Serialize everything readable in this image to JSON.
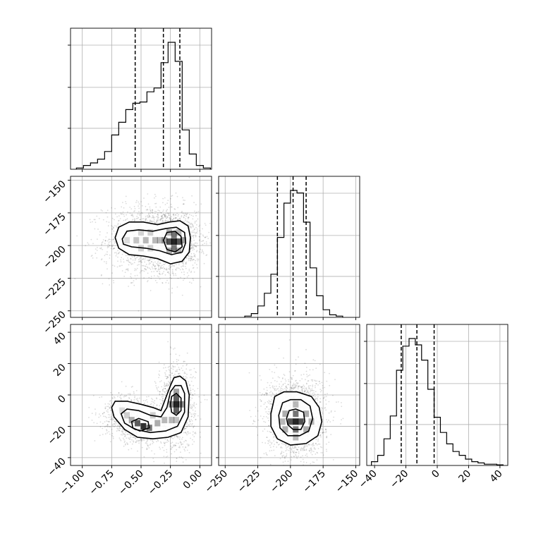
{
  "chart_data": {
    "type": "corner",
    "grid": true,
    "parameters": [
      {
        "range": [
          -1.1,
          0.1
        ],
        "ticks": [
          -1.0,
          -0.75,
          -0.5,
          -0.25,
          0.0
        ],
        "tick_labels": [
          "−1.00",
          "−0.75",
          "−0.50",
          "−0.25",
          "0.00"
        ],
        "quantiles": [
          -0.55,
          -0.31,
          -0.17
        ],
        "hist": {
          "bins": [
            -1.05,
            -0.99,
            -0.93,
            -0.87,
            -0.81,
            -0.75,
            -0.69,
            -0.63,
            -0.57,
            -0.51,
            -0.45,
            -0.39,
            -0.33,
            -0.27,
            -0.21,
            -0.15,
            -0.09,
            -0.03,
            0.03,
            0.09
          ],
          "counts": [
            0.01,
            0.03,
            0.05,
            0.08,
            0.14,
            0.27,
            0.37,
            0.47,
            0.52,
            0.53,
            0.61,
            0.64,
            0.84,
            1.0,
            0.85,
            0.31,
            0.12,
            0.03,
            0.01
          ]
        }
      },
      {
        "range": [
          -255,
          -147
        ],
        "ticks": [
          -250,
          -225,
          -200,
          -175,
          -150
        ],
        "tick_labels": [
          "−250",
          "−225",
          "−200",
          "−175",
          "−150"
        ],
        "quantiles": [
          -210,
          -198,
          -188
        ],
        "hist": {
          "bins": [
            -235,
            -230,
            -225,
            -220,
            -215,
            -210,
            -205,
            -200,
            -195,
            -190,
            -185,
            -180,
            -175,
            -170,
            -165,
            -160
          ],
          "counts": [
            0.01,
            0.03,
            0.09,
            0.19,
            0.34,
            0.63,
            0.9,
            1.0,
            0.98,
            0.75,
            0.39,
            0.17,
            0.06,
            0.02,
            0.01
          ]
        }
      },
      {
        "range": [
          -45,
          45
        ],
        "ticks": [
          -40,
          -20,
          0,
          20,
          40
        ],
        "tick_labels": [
          "−40",
          "−20",
          "0",
          "20",
          "40"
        ],
        "quantiles": [
          -23,
          -13,
          -2
        ],
        "hist": {
          "bins": [
            -42,
            -38,
            -34,
            -30,
            -26,
            -22,
            -18,
            -14,
            -10,
            -6,
            -2,
            2,
            6,
            10,
            14,
            18,
            22,
            26,
            30,
            34,
            38,
            42
          ],
          "counts": [
            0.03,
            0.08,
            0.21,
            0.39,
            0.75,
            0.94,
            1.0,
            0.95,
            0.83,
            0.6,
            0.38,
            0.26,
            0.17,
            0.11,
            0.08,
            0.05,
            0.03,
            0.02,
            0.01,
            0.01,
            0.005
          ]
        }
      }
    ],
    "pairs": [
      {
        "x_param": 0,
        "y_param": 1,
        "contours": [
          [
            [
              -0.72,
              -194
            ],
            [
              -0.69,
              -186
            ],
            [
              -0.6,
              -182
            ],
            [
              -0.48,
              -182
            ],
            [
              -0.36,
              -184
            ],
            [
              -0.26,
              -182
            ],
            [
              -0.17,
              -181
            ],
            [
              -0.1,
              -185
            ],
            [
              -0.08,
              -194
            ],
            [
              -0.09,
              -205
            ],
            [
              -0.15,
              -212
            ],
            [
              -0.25,
              -214
            ],
            [
              -0.36,
              -210
            ],
            [
              -0.48,
              -208
            ],
            [
              -0.6,
              -207
            ],
            [
              -0.69,
              -202
            ],
            [
              -0.72,
              -194
            ]
          ],
          [
            [
              -0.66,
              -195
            ],
            [
              -0.62,
              -189
            ],
            [
              -0.52,
              -188
            ],
            [
              -0.4,
              -189
            ],
            [
              -0.29,
              -187
            ],
            [
              -0.2,
              -186
            ],
            [
              -0.13,
              -190
            ],
            [
              -0.12,
              -198
            ],
            [
              -0.15,
              -205
            ],
            [
              -0.24,
              -207
            ],
            [
              -0.34,
              -204
            ],
            [
              -0.46,
              -202
            ],
            [
              -0.58,
              -201
            ],
            [
              -0.65,
              -199
            ],
            [
              -0.66,
              -195
            ]
          ],
          [
            [
              -0.31,
              -196
            ],
            [
              -0.28,
              -190
            ],
            [
              -0.21,
              -189
            ],
            [
              -0.16,
              -193
            ],
            [
              -0.15,
              -201
            ],
            [
              -0.21,
              -205
            ],
            [
              -0.28,
              -203
            ],
            [
              -0.31,
              -196
            ]
          ]
        ],
        "cells": [
          [
            -0.22,
            -197,
            0.95
          ],
          [
            -0.26,
            -197,
            0.75
          ],
          [
            -0.18,
            -197,
            0.75
          ],
          [
            -0.22,
            -192,
            0.6
          ],
          [
            -0.22,
            -202,
            0.6
          ],
          [
            -0.3,
            -196,
            0.4
          ],
          [
            -0.14,
            -196,
            0.4
          ],
          [
            -0.38,
            -196,
            0.3
          ],
          [
            -0.46,
            -196,
            0.3
          ],
          [
            -0.54,
            -196,
            0.25
          ],
          [
            -0.62,
            -196,
            0.15
          ],
          [
            -0.42,
            -190,
            0.2
          ],
          [
            -0.42,
            -202,
            0.2
          ],
          [
            -0.5,
            -190,
            0.18
          ],
          [
            -0.5,
            -202,
            0.18
          ],
          [
            -0.26,
            -190,
            0.35
          ],
          [
            -0.26,
            -204,
            0.35
          ],
          [
            -0.18,
            -190,
            0.3
          ],
          [
            -0.18,
            -204,
            0.3
          ],
          [
            -0.34,
            -196,
            0.3
          ]
        ]
      },
      {
        "x_param": 0,
        "y_param": 2,
        "contours": [
          [
            [
              -0.75,
              -8
            ],
            [
              -0.72,
              -4
            ],
            [
              -0.62,
              -4
            ],
            [
              -0.5,
              -6
            ],
            [
              -0.4,
              -8
            ],
            [
              -0.33,
              -10
            ],
            [
              -0.29,
              -2
            ],
            [
              -0.25,
              6
            ],
            [
              -0.22,
              11
            ],
            [
              -0.17,
              12
            ],
            [
              -0.12,
              9
            ],
            [
              -0.09,
              0
            ],
            [
              -0.1,
              -14
            ],
            [
              -0.16,
              -24
            ],
            [
              -0.27,
              -27
            ],
            [
              -0.4,
              -28
            ],
            [
              -0.53,
              -27
            ],
            [
              -0.64,
              -22
            ],
            [
              -0.73,
              -14
            ],
            [
              -0.75,
              -8
            ]
          ],
          [
            [
              -0.67,
              -12
            ],
            [
              -0.62,
              -9
            ],
            [
              -0.52,
              -10
            ],
            [
              -0.42,
              -13
            ],
            [
              -0.33,
              -14
            ],
            [
              -0.28,
              -8
            ],
            [
              -0.25,
              2
            ],
            [
              -0.21,
              6
            ],
            [
              -0.16,
              6
            ],
            [
              -0.13,
              1
            ],
            [
              -0.13,
              -11
            ],
            [
              -0.19,
              -20
            ],
            [
              -0.29,
              -23
            ],
            [
              -0.42,
              -24
            ],
            [
              -0.55,
              -22
            ],
            [
              -0.64,
              -18
            ],
            [
              -0.67,
              -12
            ]
          ],
          [
            [
              -0.25,
              -6
            ],
            [
              -0.24,
              -1
            ],
            [
              -0.2,
              1
            ],
            [
              -0.16,
              -2
            ],
            [
              -0.16,
              -10
            ],
            [
              -0.2,
              -13
            ],
            [
              -0.24,
              -11
            ],
            [
              -0.25,
              -6
            ]
          ],
          [
            [
              -0.58,
              -17
            ],
            [
              -0.52,
              -15
            ],
            [
              -0.44,
              -17
            ],
            [
              -0.43,
              -21
            ],
            [
              -0.51,
              -23
            ],
            [
              -0.57,
              -21
            ],
            [
              -0.58,
              -17
            ]
          ]
        ],
        "cells": [
          [
            -0.2,
            -6,
            0.95
          ],
          [
            -0.2,
            -2,
            0.7
          ],
          [
            -0.2,
            -10,
            0.7
          ],
          [
            -0.48,
            -20,
            0.9
          ],
          [
            -0.53,
            -18,
            0.7
          ],
          [
            -0.43,
            -21,
            0.6
          ],
          [
            -0.24,
            -6,
            0.5
          ],
          [
            -0.16,
            -6,
            0.5
          ],
          [
            -0.2,
            2,
            0.4
          ],
          [
            -0.36,
            -18,
            0.35
          ],
          [
            -0.3,
            -16,
            0.3
          ],
          [
            -0.58,
            -16,
            0.35
          ],
          [
            -0.62,
            -13,
            0.2
          ],
          [
            -0.24,
            -16,
            0.3
          ],
          [
            -0.2,
            -16,
            0.25
          ],
          [
            -0.66,
            -10,
            0.15
          ],
          [
            -0.4,
            -13,
            0.2
          ]
        ]
      },
      {
        "x_param": 1,
        "y_param": 2,
        "contours": [
          [
            [
              -215,
              -12
            ],
            [
              -212,
              -1
            ],
            [
              -205,
              2
            ],
            [
              -195,
              2
            ],
            [
              -184,
              -1
            ],
            [
              -178,
              -8
            ],
            [
              -176,
              -17
            ],
            [
              -179,
              -26
            ],
            [
              -188,
              -31
            ],
            [
              -200,
              -32
            ],
            [
              -210,
              -28
            ],
            [
              -215,
              -20
            ],
            [
              -215,
              -12
            ]
          ],
          [
            [
              -209,
              -13
            ],
            [
              -206,
              -5
            ],
            [
              -200,
              -3
            ],
            [
              -192,
              -3
            ],
            [
              -185,
              -7
            ],
            [
              -183,
              -15
            ],
            [
              -186,
              -23
            ],
            [
              -193,
              -26
            ],
            [
              -202,
              -26
            ],
            [
              -208,
              -21
            ],
            [
              -209,
              -13
            ]
          ],
          [
            [
              -203,
              -15
            ],
            [
              -201,
              -10
            ],
            [
              -196,
              -9
            ],
            [
              -190,
              -11
            ],
            [
              -189,
              -17
            ],
            [
              -192,
              -22
            ],
            [
              -198,
              -22
            ],
            [
              -202,
              -19
            ],
            [
              -203,
              -15
            ]
          ]
        ],
        "cells": [
          [
            -196,
            -17,
            0.95
          ],
          [
            -200,
            -17,
            0.75
          ],
          [
            -192,
            -17,
            0.75
          ],
          [
            -196,
            -12,
            0.6
          ],
          [
            -196,
            -22,
            0.6
          ],
          [
            -204,
            -12,
            0.35
          ],
          [
            -188,
            -12,
            0.35
          ],
          [
            -204,
            -22,
            0.35
          ],
          [
            -188,
            -22,
            0.35
          ],
          [
            -196,
            -6,
            0.3
          ],
          [
            -196,
            -27,
            0.3
          ],
          [
            -206,
            -17,
            0.3
          ],
          [
            -184,
            -17,
            0.3
          ]
        ]
      }
    ]
  }
}
